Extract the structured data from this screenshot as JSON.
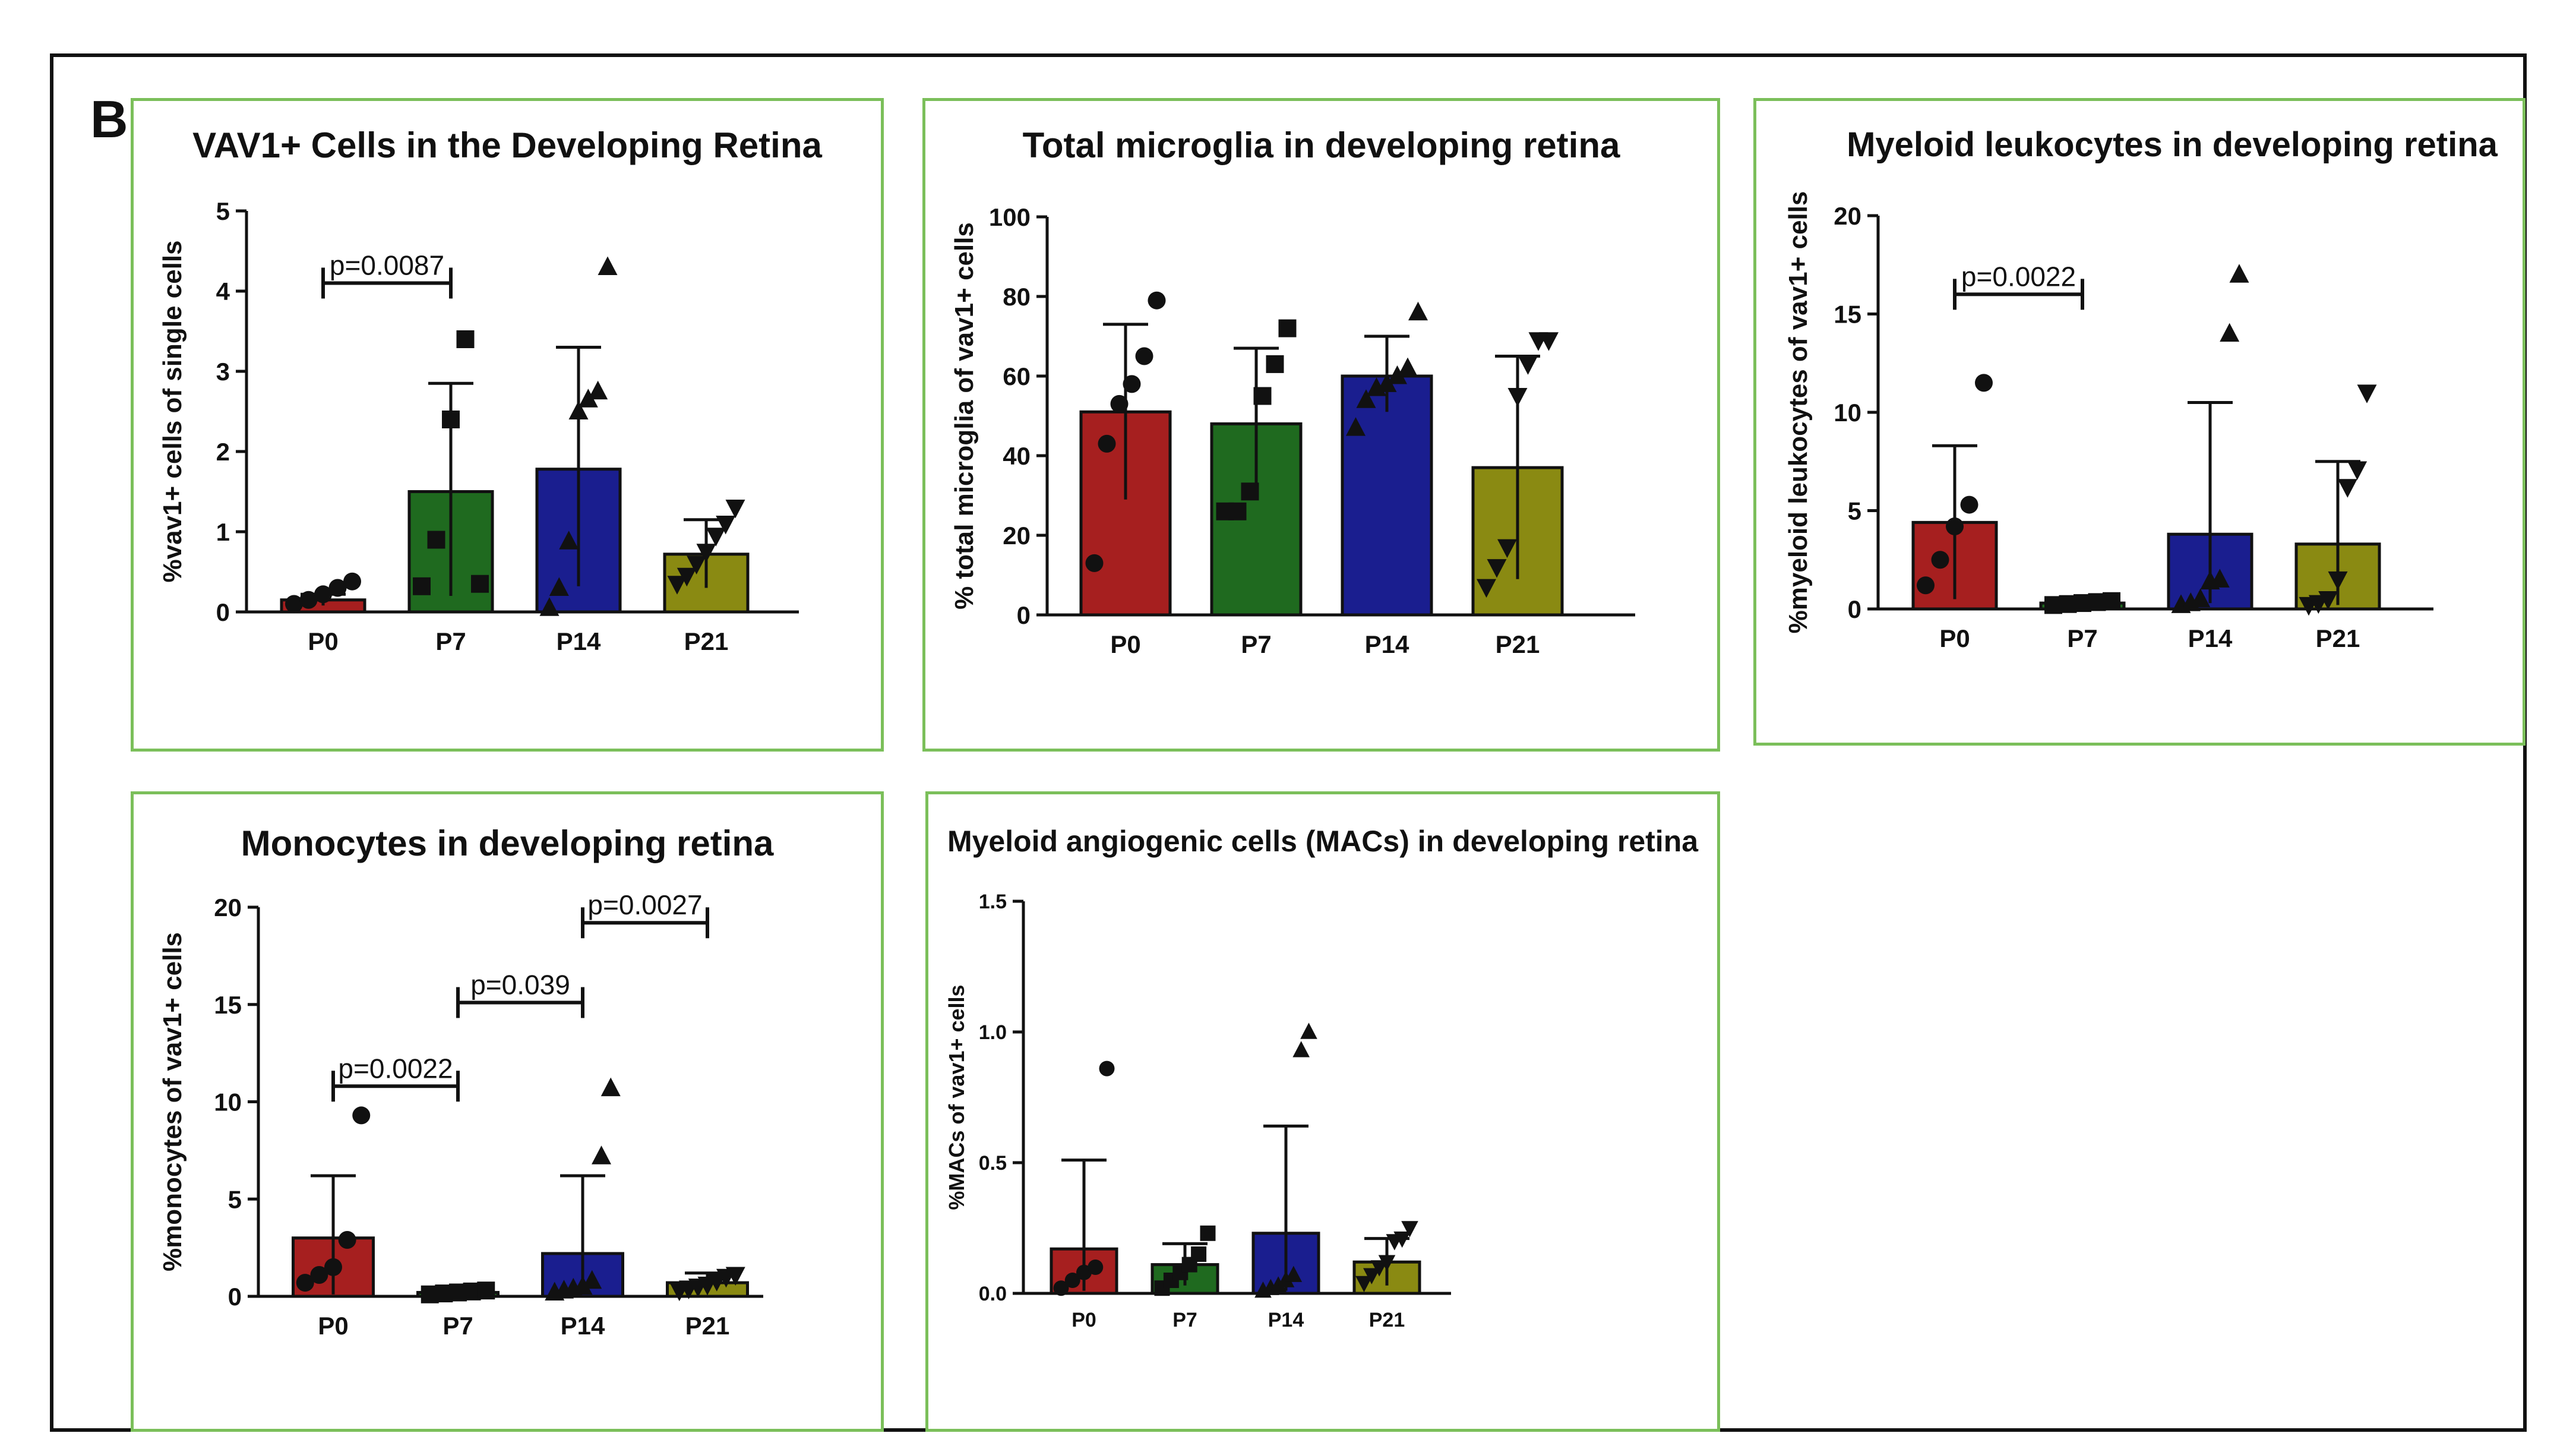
{
  "figure": {
    "panel_letter": "B"
  },
  "chart_data": [
    {
      "id": "vav1",
      "type": "bar",
      "title": "VAV1+ Cells in the Developing Retina",
      "ylabel": "%vav1+ cells of single cells",
      "xlabel": "",
      "categories": [
        "P0",
        "P7",
        "P14",
        "P21"
      ],
      "values": [
        0.15,
        1.5,
        1.78,
        0.72
      ],
      "error_high": [
        0.22,
        2.85,
        3.3,
        1.15
      ],
      "error_low": [
        0.08,
        0.2,
        0.32,
        0.3
      ],
      "points": [
        [
          0.1,
          0.15,
          0.22,
          0.3,
          0.38
        ],
        [
          0.32,
          0.9,
          2.4,
          3.4,
          0.35
        ],
        [
          0.05,
          0.3,
          0.88,
          2.5,
          2.65,
          2.75,
          4.3
        ],
        [
          0.35,
          0.45,
          0.6,
          0.75,
          0.95,
          1.1,
          1.3
        ]
      ],
      "ylim": [
        0,
        5
      ],
      "yticks": [
        "0",
        "1",
        "2",
        "3",
        "4",
        "5"
      ],
      "brackets": [
        {
          "from": 0,
          "to": 1,
          "y": 4.1,
          "label": "p=0.0087"
        }
      ]
    },
    {
      "id": "microglia",
      "type": "bar",
      "title": "Total microglia in developing retina",
      "ylabel": "% total microglia of vav1+ cells",
      "xlabel": "",
      "categories": [
        "P0",
        "P7",
        "P14",
        "P21"
      ],
      "values": [
        51,
        48,
        60,
        37
      ],
      "error_high": [
        73,
        67,
        70,
        65
      ],
      "error_low": [
        29,
        29,
        51,
        9
      ],
      "points": [
        [
          13,
          43,
          53,
          58,
          65,
          79
        ],
        [
          26,
          26,
          31,
          55,
          63,
          72
        ],
        [
          47,
          54,
          57,
          58,
          60,
          62,
          76
        ],
        [
          7,
          12,
          17,
          55,
          63,
          69,
          69
        ]
      ],
      "ylim": [
        0,
        100
      ],
      "yticks": [
        "0",
        "20",
        "40",
        "60",
        "80",
        "100"
      ],
      "brackets": []
    },
    {
      "id": "myeloid",
      "type": "bar",
      "title": "Myeloid leukocytes in developing retina",
      "ylabel": "%myeloid leukocytes of vav1+ cells",
      "xlabel": "",
      "categories": [
        "P0",
        "P7",
        "P14",
        "P21"
      ],
      "values": [
        4.4,
        0.3,
        3.8,
        3.3
      ],
      "error_high": [
        8.3,
        0.5,
        10.5,
        7.5
      ],
      "error_low": [
        0.5,
        0.1,
        0.3,
        0.2
      ],
      "points": [
        [
          1.2,
          2.5,
          4.2,
          5.3,
          11.5
        ],
        [
          0.2,
          0.25,
          0.3,
          0.35,
          0.4
        ],
        [
          0.2,
          0.3,
          0.5,
          1.4,
          1.5,
          14,
          17
        ],
        [
          0.2,
          0.3,
          0.5,
          1.5,
          6.2,
          7.1,
          11
        ]
      ],
      "ylim": [
        0,
        20
      ],
      "yticks": [
        "0",
        "5",
        "10",
        "15",
        "20"
      ],
      "brackets": [
        {
          "from": 0,
          "to": 1,
          "y": 16,
          "label": "p=0.0022"
        }
      ]
    },
    {
      "id": "monocytes",
      "type": "bar",
      "title": "Monocytes in developing retina",
      "ylabel": "%monocytes of vav1+ cells",
      "xlabel": "",
      "categories": [
        "P0",
        "P7",
        "P14",
        "P21"
      ],
      "values": [
        3.0,
        0.2,
        2.2,
        0.7
      ],
      "error_high": [
        6.2,
        0.3,
        6.2,
        1.2
      ],
      "error_low": [
        0.1,
        0.1,
        0.1,
        0.2
      ],
      "points": [
        [
          0.7,
          1.1,
          1.5,
          2.9,
          9.3
        ],
        [
          0.1,
          0.15,
          0.2,
          0.25,
          0.3
        ],
        [
          0.2,
          0.3,
          0.4,
          0.5,
          0.8,
          7.2,
          10.7
        ],
        [
          0.3,
          0.4,
          0.5,
          0.6,
          0.8,
          1.0,
          1.1
        ]
      ],
      "ylim": [
        0,
        20
      ],
      "yticks": [
        "0",
        "5",
        "10",
        "15",
        "20"
      ],
      "brackets": [
        {
          "from": 0,
          "to": 1,
          "y": 10.8,
          "label": "p=0.0022"
        },
        {
          "from": 1,
          "to": 2,
          "y": 15.1,
          "label": "p=0.039"
        },
        {
          "from": 2,
          "to": 3,
          "y": 19.2,
          "label": "p=0.0027"
        }
      ]
    },
    {
      "id": "macs",
      "type": "bar",
      "title": "Myeloid angiogenic cells (MACs) in developing retina",
      "ylabel": "%MACs of vav1+ cells",
      "xlabel": "",
      "categories": [
        "P0",
        "P7",
        "P14",
        "P21"
      ],
      "values": [
        0.17,
        0.11,
        0.23,
        0.12
      ],
      "error_high": [
        0.51,
        0.19,
        0.64,
        0.21
      ],
      "error_low": [
        0.01,
        0.03,
        0.01,
        0.03
      ],
      "points": [
        [
          0.02,
          0.05,
          0.08,
          0.1,
          0.86
        ],
        [
          0.02,
          0.05,
          0.08,
          0.11,
          0.15,
          0.23
        ],
        [
          0.01,
          0.02,
          0.03,
          0.05,
          0.07,
          0.93,
          1.0
        ],
        [
          0.04,
          0.07,
          0.1,
          0.12,
          0.2,
          0.21,
          0.25
        ]
      ],
      "ylim": [
        0,
        1.5
      ],
      "yticks": [
        "0.0",
        "0.5",
        "1.0",
        "1.5"
      ],
      "brackets": []
    }
  ],
  "colors": {
    "bars": [
      "#a61f1f",
      "#1f6a1f",
      "#1a1e8f",
      "#8a8a12"
    ],
    "panel_border": "#7bbf5a",
    "ink": "#111111"
  },
  "markers": [
    "circle",
    "square",
    "triangle-up",
    "triangle-down"
  ]
}
